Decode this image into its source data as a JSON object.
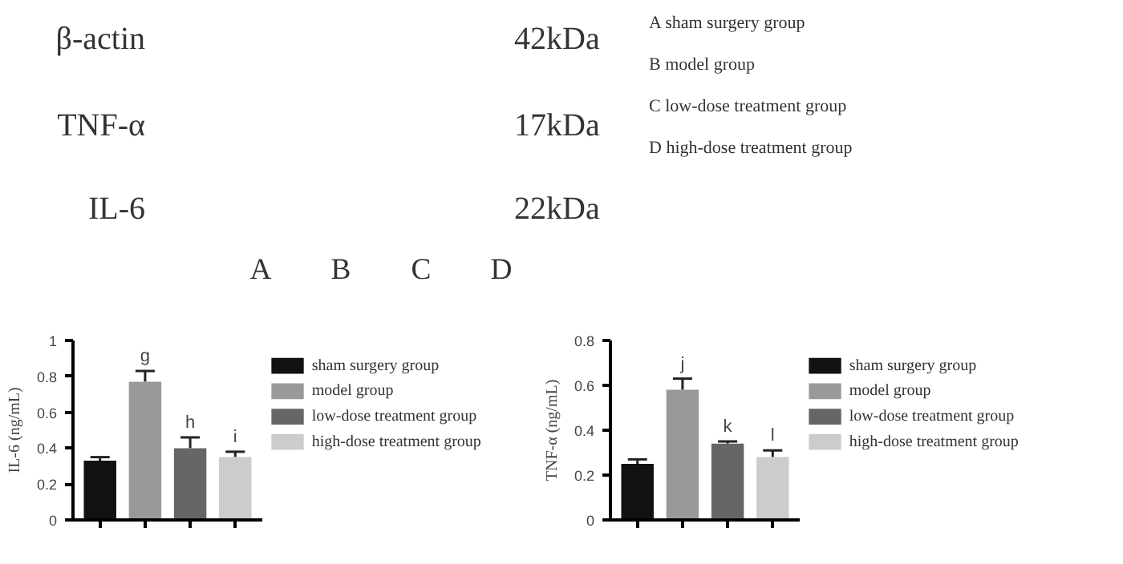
{
  "chart_data": [
    {
      "type": "other",
      "annotations": [
        "β-actin",
        "TNF-α",
        "IL-6",
        "42kDa",
        "17kDa",
        "22kDa",
        "A",
        "B",
        "C",
        "D",
        "A sham surgery group",
        "B model group",
        "C low-dose treatment group",
        "D high-dose treatment group"
      ]
    },
    {
      "type": "bar",
      "ylabel": "IL-6 (ng/mL)",
      "categories": [
        null,
        null,
        null,
        null
      ],
      "ylim": [
        0,
        1.0
      ],
      "yticks": [
        0.0,
        0.2,
        0.4,
        0.6,
        0.8,
        1.0
      ],
      "tick_labels": "y",
      "legend": "right",
      "grid": false,
      "series": [
        {
          "name": "sham surgery group",
          "color": "#111111",
          "values": [
            0.33,
            null,
            null,
            null
          ],
          "errors": [
            0.02,
            null,
            null,
            null
          ]
        },
        {
          "name": "model group",
          "color": "#999999",
          "values": [
            null,
            0.77,
            null,
            null
          ],
          "errors": [
            null,
            0.06,
            null,
            null
          ]
        },
        {
          "name": "low-dose treatment group",
          "color": "#666666",
          "values": [
            null,
            null,
            0.4,
            null
          ],
          "errors": [
            null,
            null,
            0.06,
            null
          ]
        },
        {
          "name": "high-dose treatment group",
          "color": "#cccccc",
          "values": [
            null,
            null,
            null,
            0.35
          ],
          "errors": [
            null,
            null,
            null,
            0.03
          ]
        }
      ],
      "annotations": [
        {
          "text": "g",
          "y": 0.83
        },
        {
          "text": "h",
          "y": 0.46
        },
        {
          "text": "i",
          "y": 0.38
        }
      ]
    },
    {
      "type": "bar",
      "ylabel": "TNF-α (ng/mL)",
      "categories": [
        null,
        null,
        null,
        null
      ],
      "ylim": [
        0,
        0.8
      ],
      "yticks": [
        0.0,
        0.2,
        0.4,
        0.6,
        0.8
      ],
      "tick_labels": "y",
      "legend": "right",
      "grid": false,
      "series": [
        {
          "name": "sham surgery group",
          "color": "#111111",
          "values": [
            0.25,
            null,
            null,
            null
          ],
          "errors": [
            0.02,
            null,
            null,
            null
          ]
        },
        {
          "name": "model group",
          "color": "#999999",
          "values": [
            null,
            0.58,
            null,
            null
          ],
          "errors": [
            null,
            0.05,
            null,
            null
          ]
        },
        {
          "name": "low-dose treatment group",
          "color": "#666666",
          "values": [
            null,
            null,
            0.34,
            null
          ],
          "errors": [
            null,
            null,
            0.01,
            null
          ]
        },
        {
          "name": "high-dose treatment group",
          "color": "#cccccc",
          "values": [
            null,
            null,
            null,
            0.28
          ],
          "errors": [
            null,
            null,
            null,
            0.03
          ]
        }
      ],
      "annotations": [
        {
          "text": "j",
          "y": 0.63
        },
        {
          "text": "k",
          "y": 0.35
        },
        {
          "text": "l",
          "y": 0.31
        }
      ]
    }
  ]
}
